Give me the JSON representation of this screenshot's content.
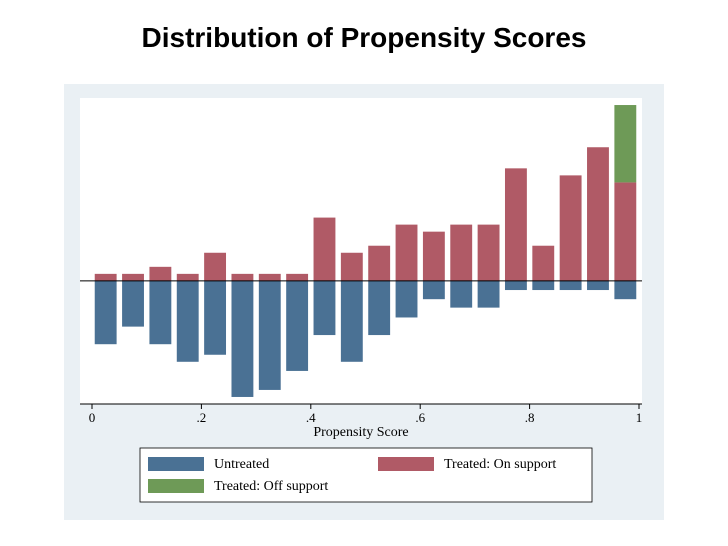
{
  "slide": {
    "title": "Distribution of Propensity Scores"
  },
  "colors": {
    "untreated": "#4a7194",
    "treated_on_support": "#b05a66",
    "treated_off_support": "#6e9a57",
    "plot_background": "#eaf0f4",
    "plot_area": "#ffffff"
  },
  "chart_data": {
    "type": "bar",
    "title": "",
    "xlabel": "Propensity Score",
    "ylabel": "",
    "xlim": [
      0,
      1
    ],
    "xticks": [
      0,
      0.2,
      0.4,
      0.6,
      0.8,
      1
    ],
    "xtick_labels": [
      "0",
      ".2",
      ".4",
      ".6",
      ".8",
      "1"
    ],
    "bin_centers": [
      0.025,
      0.075,
      0.125,
      0.175,
      0.225,
      0.275,
      0.325,
      0.375,
      0.425,
      0.475,
      0.525,
      0.575,
      0.625,
      0.675,
      0.725,
      0.775,
      0.825,
      0.875,
      0.925,
      0.975
    ],
    "bar_width": 0.04,
    "series": [
      {
        "name": "Untreated",
        "direction": "down",
        "values": [
          0.9,
          0.65,
          0.9,
          1.15,
          1.05,
          1.65,
          1.55,
          1.28,
          0.77,
          1.15,
          0.77,
          0.52,
          0.26,
          0.38,
          0.38,
          0.13,
          0.13,
          0.13,
          0.13,
          0.26
        ]
      },
      {
        "name": "Treated: On support",
        "direction": "up",
        "values": [
          0.1,
          0.1,
          0.2,
          0.1,
          0.4,
          0.1,
          0.1,
          0.1,
          0.9,
          0.4,
          0.5,
          0.8,
          0.7,
          0.8,
          0.8,
          1.6,
          0.5,
          1.5,
          1.9,
          1.4
        ]
      },
      {
        "name": "Treated: Off support",
        "direction": "up",
        "stack_on": "Treated: On support",
        "values": [
          0,
          0,
          0,
          0,
          0,
          0,
          0,
          0,
          0,
          0,
          0,
          0,
          0,
          0,
          0,
          0,
          0,
          0,
          0,
          1.1
        ]
      }
    ],
    "ylim": [
      -1.75,
      2.6
    ],
    "grid": false,
    "legend": {
      "position": "bottom",
      "entries": [
        "Untreated",
        "Treated: On support",
        "Treated: Off support"
      ]
    }
  }
}
